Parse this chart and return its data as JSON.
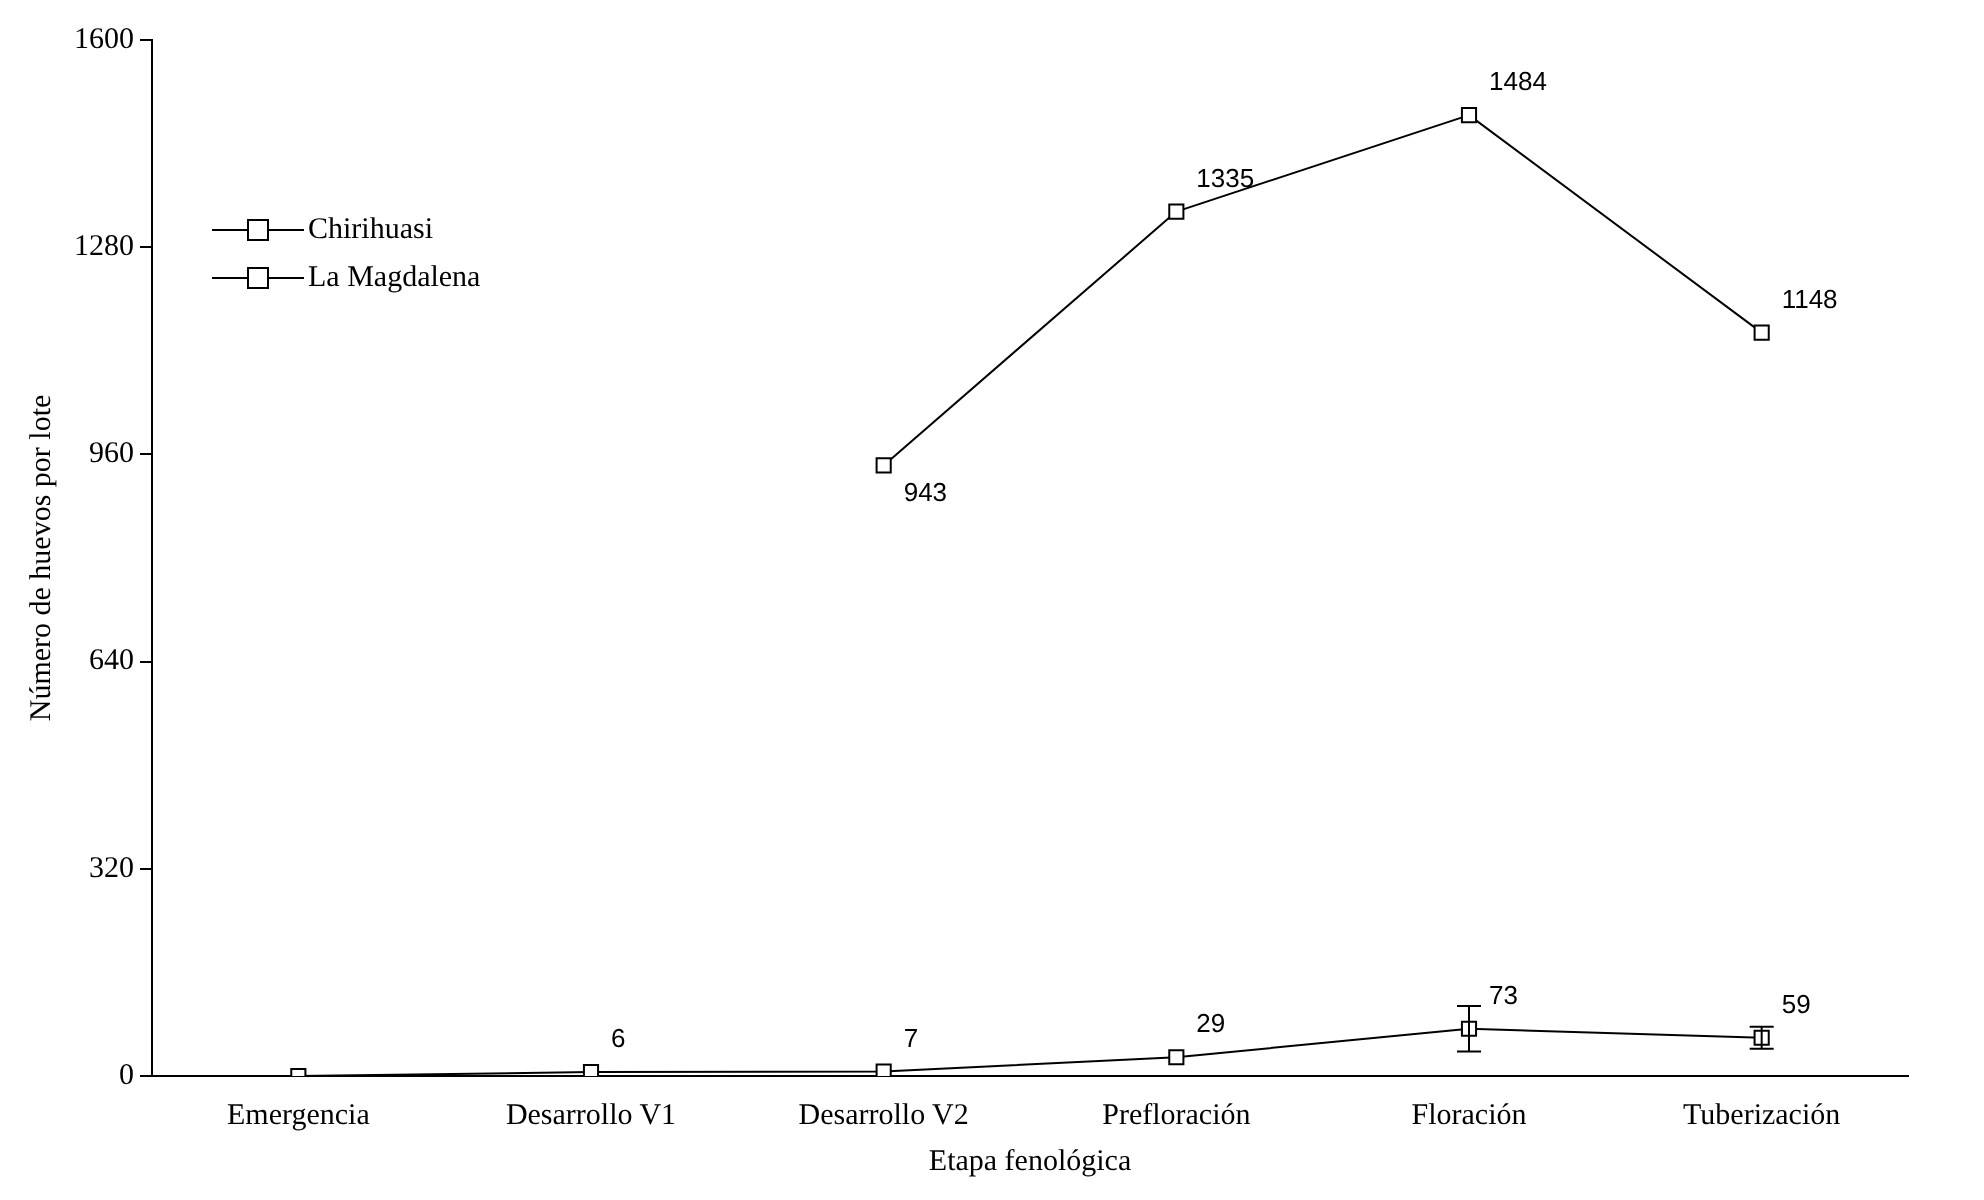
{
  "chart_data": {
    "type": "line",
    "xlabel": "Etapa fenológica",
    "ylabel": "Número de huevos por lote",
    "categories": [
      "Emergencia",
      "Desarrollo V1",
      "Desarrollo V2",
      "Prefloración",
      "Floración",
      "Tuberización"
    ],
    "series": [
      {
        "name": "Chirihuasi",
        "color": "#000000",
        "values": [
          0,
          6,
          7,
          29,
          73,
          59
        ],
        "errors": [
          null,
          null,
          null,
          null,
          35,
          17
        ],
        "value_labels": [
          null,
          "6",
          "7",
          "29",
          "73",
          "59"
        ]
      },
      {
        "name": "La Magdalena",
        "color": "#000000",
        "values": [
          null,
          null,
          943,
          1335,
          1484,
          1148
        ],
        "value_labels": [
          null,
          null,
          "943",
          "1335",
          "1484",
          "1148"
        ]
      }
    ],
    "ylim": [
      0,
      1600
    ],
    "yticks": [
      0,
      320,
      640,
      960,
      1280,
      1600
    ],
    "grid": false,
    "legend": "top left",
    "marker": "square",
    "line_style": "solid"
  }
}
